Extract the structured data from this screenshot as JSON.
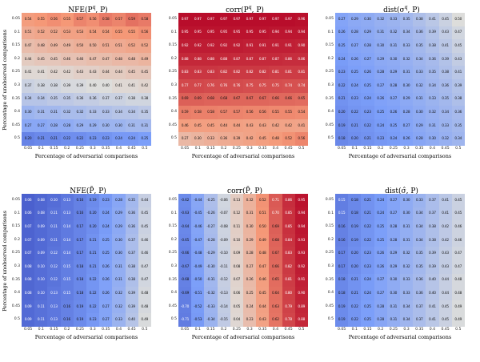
{
  "figure": {
    "xlabel": "Percentage of adversarial comparisons",
    "ylabel": "Percentage of unobserved comparisons",
    "x_ticks": [
      "0.05",
      "0.1",
      "0.15",
      "0.2",
      "0.25",
      "0.3",
      "0.35",
      "0.4",
      "0.45",
      "0.5"
    ],
    "y_ticks": [
      "0.05",
      "0.1",
      "0.15",
      "0.2",
      "0.25",
      "0.3",
      "0.35",
      "0.4",
      "0.45",
      "0.5"
    ],
    "colormap": "coolwarm",
    "grid_size": "10x10",
    "legend": "none"
  },
  "chart_data": [
    {
      "type": "heatmap",
      "title": {
        "pre": "NFE(P",
        "sup": "q",
        "post": ", P)"
      },
      "vmin": 0.1,
      "vmax": 0.7,
      "values": [
        [
          0.54,
          0.55,
          0.56,
          0.55,
          0.57,
          0.56,
          0.58,
          0.57,
          0.59,
          0.58
        ],
        [
          0.51,
          0.52,
          0.52,
          0.53,
          0.53,
          0.54,
          0.54,
          0.55,
          0.55,
          0.56
        ],
        [
          0.47,
          0.48,
          0.49,
          0.49,
          0.5,
          0.5,
          0.51,
          0.51,
          0.52,
          0.52
        ],
        [
          0.44,
          0.45,
          0.45,
          0.46,
          0.46,
          0.47,
          0.47,
          0.48,
          0.48,
          0.49
        ],
        [
          0.41,
          0.41,
          0.42,
          0.42,
          0.43,
          0.43,
          0.44,
          0.44,
          0.45,
          0.45
        ],
        [
          0.37,
          0.38,
          0.38,
          0.39,
          0.39,
          0.4,
          0.4,
          0.41,
          0.41,
          0.42
        ],
        [
          0.34,
          0.34,
          0.35,
          0.35,
          0.36,
          0.36,
          0.37,
          0.37,
          0.38,
          0.38
        ],
        [
          0.3,
          0.31,
          0.31,
          0.32,
          0.32,
          0.33,
          0.33,
          0.34,
          0.34,
          0.35
        ],
        [
          0.27,
          0.27,
          0.28,
          0.28,
          0.29,
          0.29,
          0.3,
          0.3,
          0.31,
          0.31
        ],
        [
          0.2,
          0.21,
          0.21,
          0.22,
          0.22,
          0.23,
          0.23,
          0.24,
          0.24,
          0.25
        ]
      ]
    },
    {
      "type": "heatmap",
      "title": {
        "pre": "corr(P",
        "sup": "q",
        "post": ", P)"
      },
      "vmin": -1,
      "vmax": 1,
      "values": [
        [
          0.97,
          0.97,
          0.97,
          0.97,
          0.97,
          0.97,
          0.97,
          0.97,
          0.97,
          0.96
        ],
        [
          0.95,
          0.95,
          0.95,
          0.95,
          0.95,
          0.95,
          0.95,
          0.94,
          0.94,
          0.94
        ],
        [
          0.92,
          0.92,
          0.92,
          0.92,
          0.92,
          0.91,
          0.91,
          0.91,
          0.91,
          0.9
        ],
        [
          0.88,
          0.88,
          0.88,
          0.88,
          0.87,
          0.87,
          0.87,
          0.87,
          0.86,
          0.86
        ],
        [
          0.83,
          0.83,
          0.83,
          0.82,
          0.82,
          0.82,
          0.82,
          0.81,
          0.81,
          0.81
        ],
        [
          0.77,
          0.77,
          0.76,
          0.76,
          0.76,
          0.75,
          0.75,
          0.75,
          0.74,
          0.74
        ],
        [
          0.69,
          0.69,
          0.68,
          0.68,
          0.67,
          0.67,
          0.67,
          0.66,
          0.66,
          0.65
        ],
        [
          0.59,
          0.58,
          0.58,
          0.57,
          0.57,
          0.56,
          0.56,
          0.55,
          0.55,
          0.54
        ],
        [
          0.46,
          0.45,
          0.45,
          0.44,
          0.44,
          0.43,
          0.43,
          0.42,
          0.42,
          0.41
        ],
        [
          0.27,
          0.3,
          0.33,
          0.36,
          0.39,
          0.42,
          0.45,
          0.48,
          0.52,
          0.56
        ]
      ]
    },
    {
      "type": "heatmap",
      "title": {
        "pre": "dist(σ",
        "sup": "q",
        "post": ", P)"
      },
      "vmin": 0,
      "vmax": 1,
      "values": [
        [
          0.27,
          0.29,
          0.3,
          0.32,
          0.33,
          0.35,
          0.38,
          0.41,
          0.45,
          0.5
        ],
        [
          0.26,
          0.28,
          0.29,
          0.31,
          0.32,
          0.34,
          0.36,
          0.39,
          0.43,
          0.47
        ],
        [
          0.25,
          0.27,
          0.28,
          0.3,
          0.31,
          0.33,
          0.35,
          0.38,
          0.41,
          0.45
        ],
        [
          0.24,
          0.26,
          0.27,
          0.29,
          0.3,
          0.32,
          0.34,
          0.36,
          0.39,
          0.43
        ],
        [
          0.23,
          0.25,
          0.26,
          0.28,
          0.29,
          0.31,
          0.33,
          0.35,
          0.38,
          0.41
        ],
        [
          0.22,
          0.24,
          0.25,
          0.27,
          0.28,
          0.3,
          0.32,
          0.34,
          0.36,
          0.39
        ],
        [
          0.21,
          0.23,
          0.24,
          0.26,
          0.27,
          0.29,
          0.31,
          0.33,
          0.35,
          0.38
        ],
        [
          0.2,
          0.22,
          0.23,
          0.25,
          0.26,
          0.28,
          0.3,
          0.32,
          0.34,
          0.36
        ],
        [
          0.19,
          0.21,
          0.22,
          0.24,
          0.25,
          0.27,
          0.29,
          0.31,
          0.33,
          0.35
        ],
        [
          0.18,
          0.2,
          0.21,
          0.23,
          0.24,
          0.26,
          0.28,
          0.3,
          0.32,
          0.34
        ]
      ]
    },
    {
      "type": "heatmap",
      "title": {
        "pre": "NFE(P̄, P)",
        "sup": "",
        "post": ""
      },
      "vmin": 0,
      "vmax": 1,
      "values": [
        [
          0.06,
          0.08,
          0.1,
          0.13,
          0.16,
          0.19,
          0.23,
          0.28,
          0.35,
          0.44
        ],
        [
          0.06,
          0.08,
          0.11,
          0.13,
          0.16,
          0.2,
          0.24,
          0.29,
          0.36,
          0.45
        ],
        [
          0.07,
          0.09,
          0.11,
          0.14,
          0.17,
          0.2,
          0.24,
          0.29,
          0.36,
          0.45
        ],
        [
          0.07,
          0.09,
          0.11,
          0.14,
          0.17,
          0.21,
          0.25,
          0.3,
          0.37,
          0.46
        ],
        [
          0.07,
          0.09,
          0.12,
          0.14,
          0.17,
          0.21,
          0.25,
          0.3,
          0.37,
          0.46
        ],
        [
          0.08,
          0.1,
          0.12,
          0.15,
          0.18,
          0.21,
          0.26,
          0.31,
          0.38,
          0.47
        ],
        [
          0.08,
          0.1,
          0.12,
          0.15,
          0.18,
          0.22,
          0.26,
          0.31,
          0.38,
          0.47
        ],
        [
          0.08,
          0.1,
          0.13,
          0.15,
          0.18,
          0.22,
          0.26,
          0.32,
          0.39,
          0.48
        ],
        [
          0.09,
          0.11,
          0.13,
          0.16,
          0.19,
          0.22,
          0.27,
          0.32,
          0.39,
          0.48
        ],
        [
          0.09,
          0.11,
          0.13,
          0.16,
          0.19,
          0.23,
          0.27,
          0.33,
          0.4,
          0.49
        ]
      ]
    },
    {
      "type": "heatmap",
      "title": {
        "pre": "corr(P̄, P)",
        "sup": "",
        "post": ""
      },
      "vmin": -1,
      "vmax": 1,
      "values": [
        [
          -0.62,
          -0.44,
          -0.25,
          -0.06,
          0.13,
          0.32,
          0.52,
          0.71,
          0.86,
          0.95
        ],
        [
          -0.63,
          -0.45,
          -0.26,
          -0.07,
          0.12,
          0.31,
          0.51,
          0.7,
          0.85,
          0.94
        ],
        [
          -0.64,
          -0.46,
          -0.27,
          -0.08,
          0.11,
          0.3,
          0.5,
          0.69,
          0.85,
          0.94
        ],
        [
          -0.65,
          -0.47,
          -0.28,
          -0.09,
          0.1,
          0.29,
          0.49,
          0.68,
          0.84,
          0.93
        ],
        [
          -0.66,
          -0.48,
          -0.29,
          -0.1,
          0.09,
          0.28,
          0.48,
          0.67,
          0.83,
          0.93
        ],
        [
          -0.67,
          -0.49,
          -0.3,
          -0.11,
          0.08,
          0.27,
          0.47,
          0.66,
          0.82,
          0.92
        ],
        [
          -0.68,
          -0.5,
          -0.31,
          -0.12,
          0.07,
          0.26,
          0.46,
          0.65,
          0.81,
          0.91
        ],
        [
          -0.69,
          -0.51,
          -0.32,
          -0.13,
          0.06,
          0.25,
          0.45,
          0.64,
          0.8,
          0.9
        ],
        [
          -0.7,
          -0.52,
          -0.33,
          -0.14,
          0.05,
          0.24,
          0.44,
          0.63,
          0.79,
          0.89
        ],
        [
          -0.71,
          -0.53,
          -0.34,
          -0.15,
          0.04,
          0.23,
          0.43,
          0.62,
          0.78,
          0.88
        ]
      ]
    },
    {
      "type": "heatmap",
      "title": {
        "pre": "dist(σ̂, P)",
        "sup": "",
        "post": ""
      },
      "vmin": 0,
      "vmax": 1,
      "values": [
        [
          0.15,
          0.18,
          0.21,
          0.24,
          0.27,
          0.3,
          0.33,
          0.37,
          0.41,
          0.45
        ],
        [
          0.15,
          0.18,
          0.21,
          0.24,
          0.27,
          0.3,
          0.34,
          0.37,
          0.41,
          0.45
        ],
        [
          0.16,
          0.19,
          0.22,
          0.25,
          0.28,
          0.31,
          0.34,
          0.38,
          0.42,
          0.46
        ],
        [
          0.16,
          0.19,
          0.22,
          0.25,
          0.28,
          0.31,
          0.34,
          0.38,
          0.42,
          0.46
        ],
        [
          0.17,
          0.2,
          0.23,
          0.26,
          0.29,
          0.32,
          0.35,
          0.39,
          0.43,
          0.47
        ],
        [
          0.17,
          0.2,
          0.23,
          0.26,
          0.29,
          0.32,
          0.35,
          0.39,
          0.43,
          0.47
        ],
        [
          0.18,
          0.21,
          0.24,
          0.27,
          0.3,
          0.33,
          0.36,
          0.4,
          0.44,
          0.48
        ],
        [
          0.18,
          0.21,
          0.24,
          0.27,
          0.3,
          0.33,
          0.36,
          0.4,
          0.44,
          0.48
        ],
        [
          0.19,
          0.22,
          0.25,
          0.28,
          0.31,
          0.34,
          0.37,
          0.41,
          0.45,
          0.49
        ],
        [
          0.19,
          0.22,
          0.25,
          0.28,
          0.31,
          0.34,
          0.37,
          0.41,
          0.45,
          0.49
        ]
      ]
    }
  ]
}
